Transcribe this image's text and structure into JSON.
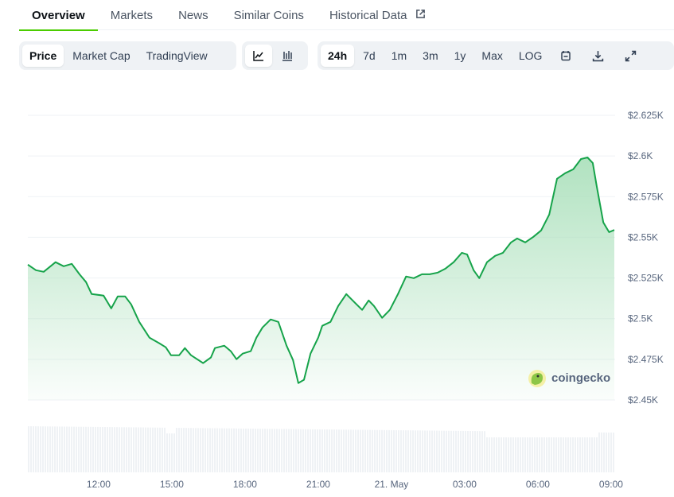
{
  "tabs": [
    {
      "label": "Overview",
      "active": true
    },
    {
      "label": "Markets"
    },
    {
      "label": "News"
    },
    {
      "label": "Similar Coins"
    },
    {
      "label": "Historical Data",
      "icon": "external-link-icon"
    }
  ],
  "toolbar": {
    "view_options": [
      {
        "label": "Price",
        "active": true
      },
      {
        "label": "Market Cap"
      },
      {
        "label": "TradingView"
      }
    ],
    "chart_types": [
      {
        "icon": "line-chart-icon",
        "active": true
      },
      {
        "icon": "candlestick-chart-icon"
      }
    ],
    "ranges": [
      {
        "label": "24h",
        "active": true
      },
      {
        "label": "7d"
      },
      {
        "label": "1m"
      },
      {
        "label": "3m"
      },
      {
        "label": "1y"
      },
      {
        "label": "Max"
      },
      {
        "label": "LOG"
      }
    ],
    "actions": [
      {
        "icon": "calendar-icon"
      },
      {
        "icon": "download-icon"
      },
      {
        "icon": "fullscreen-icon"
      }
    ]
  },
  "watermark": "coingecko",
  "colors": {
    "line": "#16a34a",
    "fill": "#b7e4c7",
    "accent": "#4bcc00",
    "volume": "#eff2f5"
  },
  "chart_data": {
    "type": "area",
    "ylim": [
      2450,
      2625
    ],
    "y_ticks": [
      "$2.625K",
      "$2.6K",
      "$2.575K",
      "$2.55K",
      "$2.525K",
      "$2.5K",
      "$2.475K",
      "$2.45K"
    ],
    "y_tick_values": [
      2625,
      2600,
      2575,
      2550,
      2525,
      2500,
      2475,
      2450
    ],
    "x_ticks": [
      "12:00",
      "15:00",
      "18:00",
      "21:00",
      "21. May",
      "03:00",
      "06:00",
      "09:00"
    ],
    "grid": true,
    "series": [
      {
        "points": [
          [
            "09:06",
            2533.2
          ],
          [
            "09:26",
            2529.8
          ],
          [
            "09:45",
            2528.8
          ],
          [
            "10:14",
            2534.7
          ],
          [
            "10:34",
            2532.2
          ],
          [
            "10:54",
            2533.7
          ],
          [
            "11:13",
            2527.3
          ],
          [
            "11:29",
            2522.5
          ],
          [
            "11:43",
            2515.1
          ],
          [
            "12:12",
            2514.2
          ],
          [
            "12:31",
            2506.3
          ],
          [
            "12:47",
            2513.7
          ],
          [
            "13:05",
            2513.7
          ],
          [
            "13:20",
            2508.8
          ],
          [
            "13:40",
            2498.0
          ],
          [
            "14:05",
            2488.3
          ],
          [
            "14:29",
            2484.9
          ],
          [
            "14:45",
            2482.4
          ],
          [
            "14:58",
            2477.5
          ],
          [
            "15:18",
            2477.5
          ],
          [
            "15:32",
            2481.9
          ],
          [
            "15:47",
            2477.5
          ],
          [
            "16:17",
            2472.7
          ],
          [
            "16:36",
            2476.1
          ],
          [
            "16:46",
            2481.9
          ],
          [
            "17:09",
            2483.4
          ],
          [
            "17:25",
            2480.0
          ],
          [
            "17:39",
            2475.1
          ],
          [
            "17:54",
            2478.5
          ],
          [
            "18:14",
            2480.0
          ],
          [
            "18:28",
            2488.3
          ],
          [
            "18:43",
            2494.6
          ],
          [
            "19:03",
            2499.5
          ],
          [
            "19:22",
            2498.0
          ],
          [
            "19:42",
            2483.4
          ],
          [
            "19:58",
            2474.6
          ],
          [
            "20:11",
            2460.4
          ],
          [
            "20:25",
            2462.4
          ],
          [
            "20:41",
            2478.5
          ],
          [
            "21:00",
            2488.3
          ],
          [
            "21:10",
            2495.6
          ],
          [
            "21:30",
            2498.0
          ],
          [
            "21:49",
            2507.8
          ],
          [
            "22:09",
            2515.1
          ],
          [
            "22:28",
            2510.3
          ],
          [
            "22:48",
            2505.4
          ],
          [
            "23:04",
            2511.2
          ],
          [
            "23:17",
            2507.8
          ],
          [
            "23:37",
            2500.5
          ],
          [
            "23:56",
            2505.4
          ],
          [
            "00:16",
            2515.1
          ],
          [
            "00:36",
            2525.9
          ],
          [
            "00:55",
            2524.9
          ],
          [
            "01:15",
            2527.3
          ],
          [
            "01:34",
            2527.3
          ],
          [
            "01:54",
            2528.3
          ],
          [
            "02:13",
            2530.8
          ],
          [
            "02:33",
            2534.7
          ],
          [
            "02:53",
            2540.5
          ],
          [
            "03:06",
            2539.5
          ],
          [
            "03:22",
            2529.8
          ],
          [
            "03:36",
            2524.9
          ],
          [
            "03:55",
            2534.7
          ],
          [
            "04:15",
            2538.6
          ],
          [
            "04:34",
            2540.5
          ],
          [
            "04:54",
            2546.9
          ],
          [
            "05:09",
            2549.3
          ],
          [
            "05:29",
            2546.9
          ],
          [
            "05:49",
            2550.3
          ],
          [
            "06:08",
            2554.2
          ],
          [
            "06:28",
            2564.0
          ],
          [
            "06:47",
            2586.0
          ],
          [
            "07:07",
            2589.4
          ],
          [
            "07:27",
            2591.8
          ],
          [
            "07:46",
            2598.1
          ],
          [
            "08:02",
            2599.1
          ],
          [
            "08:15",
            2595.7
          ],
          [
            "08:25",
            2581.1
          ],
          [
            "08:41",
            2559.1
          ],
          [
            "08:55",
            2553.2
          ],
          [
            "09:08",
            2554.5
          ]
        ]
      }
    ]
  }
}
